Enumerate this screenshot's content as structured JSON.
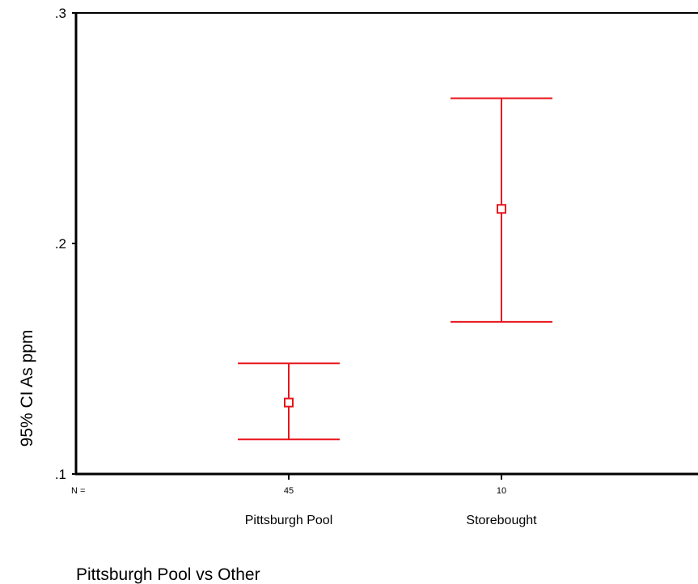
{
  "chart_data": {
    "type": "errorbar",
    "title": "",
    "xlabel": "Pittsburgh Pool vs Other",
    "ylabel": "95% CI As ppm",
    "ylim": [
      0.1,
      0.3
    ],
    "yticks": [
      ".1",
      ".2",
      ".3"
    ],
    "n_label": "N =",
    "categories": [
      "Pittsburgh Pool",
      "Storebought"
    ],
    "n": [
      "45",
      "10"
    ],
    "mean": [
      0.131,
      0.215
    ],
    "lower": [
      0.115,
      0.166
    ],
    "upper": [
      0.148,
      0.263
    ],
    "grid": false,
    "color": "#e8151b"
  }
}
